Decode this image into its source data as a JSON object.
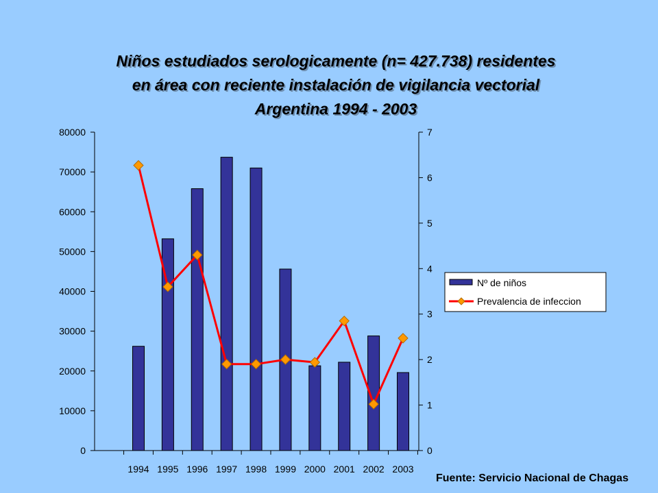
{
  "title_lines": [
    "Niños estudiados serologicamente (n= 427.738) residentes",
    "en área con reciente instalación de vigilancia vectorial",
    "Argentina 1994 - 2003"
  ],
  "source": "Fuente: Servicio Nacional de Chagas",
  "colors": {
    "background": "#99ccff",
    "bar": "#333399",
    "line": "#ff0000",
    "marker": "#ff9900",
    "axis": "#000000"
  },
  "chart_data": {
    "type": "bar+line",
    "categories": [
      "1994",
      "1995",
      "1996",
      "1997",
      "1998",
      "1999",
      "2000",
      "2001",
      "2002",
      "2003"
    ],
    "series": [
      {
        "name": "Nº de niños",
        "type": "bar",
        "axis": "left",
        "values": [
          26200,
          53200,
          65800,
          73700,
          71000,
          45600,
          21300,
          22200,
          28800,
          19600
        ]
      },
      {
        "name": "Prevalencia de infeccion",
        "type": "line",
        "axis": "right",
        "values": [
          6.27,
          3.6,
          4.3,
          1.9,
          1.9,
          2.0,
          1.94,
          2.85,
          1.02,
          2.47
        ]
      }
    ],
    "left_axis": {
      "ylim": [
        0,
        80000
      ],
      "ticks": [
        "0",
        "10000",
        "20000",
        "30000",
        "40000",
        "50000",
        "60000",
        "70000",
        "80000"
      ]
    },
    "right_axis": {
      "ylim": [
        0,
        7
      ],
      "ticks": [
        "0",
        "1",
        "2",
        "3",
        "4",
        "5",
        "6",
        "7"
      ]
    },
    "legend": {
      "position": "right",
      "entries": [
        "Nº de niños",
        "Prevalencia de infeccion"
      ]
    },
    "grid": false
  }
}
